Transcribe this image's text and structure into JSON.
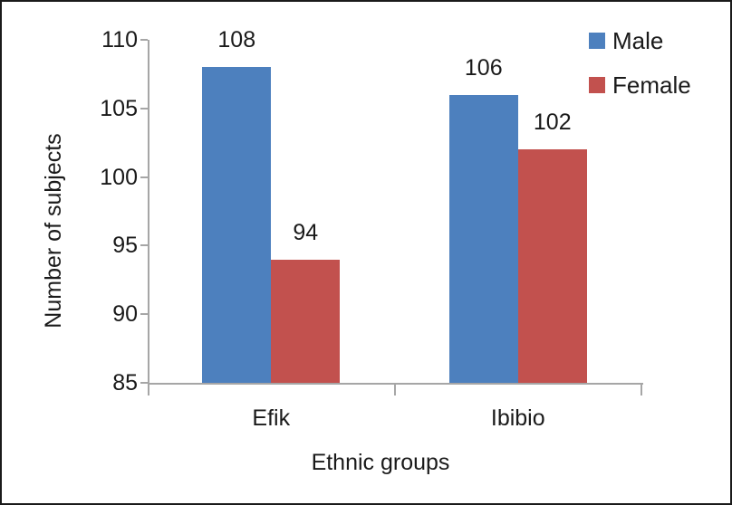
{
  "figure": {
    "background": "#ffffff",
    "frame_color": "#1a1a1a",
    "axis_color": "#a6a6a6",
    "text_color": "#1a1a1a"
  },
  "chart_data": {
    "type": "bar",
    "title": "",
    "xlabel": "Ethnic groups",
    "ylabel": "Number of subjects",
    "categories": [
      "Efik",
      "Ibibio"
    ],
    "series": [
      {
        "name": "Male",
        "color": "#4d80be",
        "values": [
          108,
          106
        ]
      },
      {
        "name": "Female",
        "color": "#c2514e",
        "values": [
          94,
          102
        ]
      }
    ],
    "data_labels": [
      [
        108,
        106
      ],
      [
        94,
        102
      ]
    ],
    "ylim": [
      85,
      110
    ],
    "yticks": [
      85,
      90,
      95,
      100,
      105,
      110
    ],
    "grid": "off",
    "legend_position": "top-right",
    "data_labels_shown": true
  }
}
